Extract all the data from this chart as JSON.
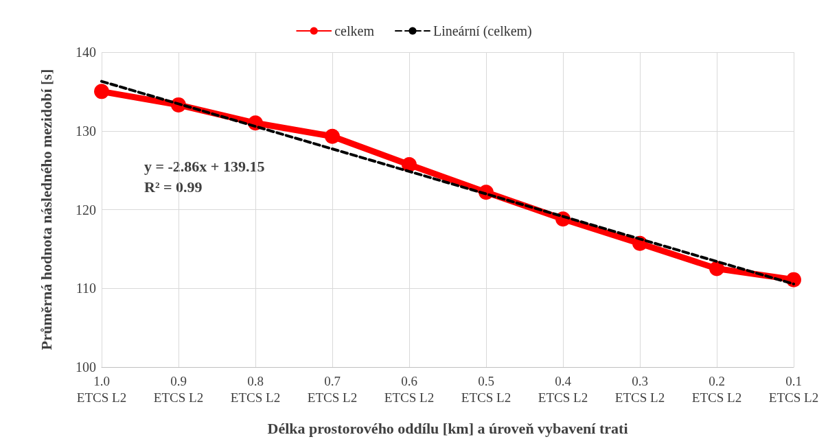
{
  "chart_data": {
    "type": "line",
    "xlabel": "Délka prostorového oddílu [km] a úroveň vybavení trati",
    "ylabel": "Průměrná hodnota následného mezidobí [s]",
    "categories": [
      "1.0\nETCS L2",
      "0.9\nETCS L2",
      "0.8\nETCS L2",
      "0.7\nETCS L2",
      "0.6\nETCS L2",
      "0.5\nETCS L2",
      "0.4\nETCS L2",
      "0.3\nETCS L2",
      "0.2\nETCS L2",
      "0.1\nETCS L2"
    ],
    "series": [
      {
        "name": "celkem",
        "color": "#ff0000",
        "marker": "circle",
        "line_style": "solid",
        "values": [
          135.0,
          133.3,
          131.0,
          129.3,
          125.7,
          122.2,
          118.8,
          115.7,
          112.5,
          111.1
        ]
      },
      {
        "name": "Lineární (celkem)",
        "color": "#000000",
        "marker": "none",
        "line_style": "dashed",
        "values": [
          136.29,
          133.43,
          130.57,
          127.71,
          124.85,
          121.99,
          119.13,
          116.27,
          113.41,
          110.55
        ]
      }
    ],
    "ylim": [
      100,
      140
    ],
    "yticks": [
      100,
      110,
      120,
      130,
      140
    ],
    "grid": true,
    "legend": "top",
    "annotations": [
      "y = -2.86x + 139.15\nR² = 0.99"
    ]
  }
}
